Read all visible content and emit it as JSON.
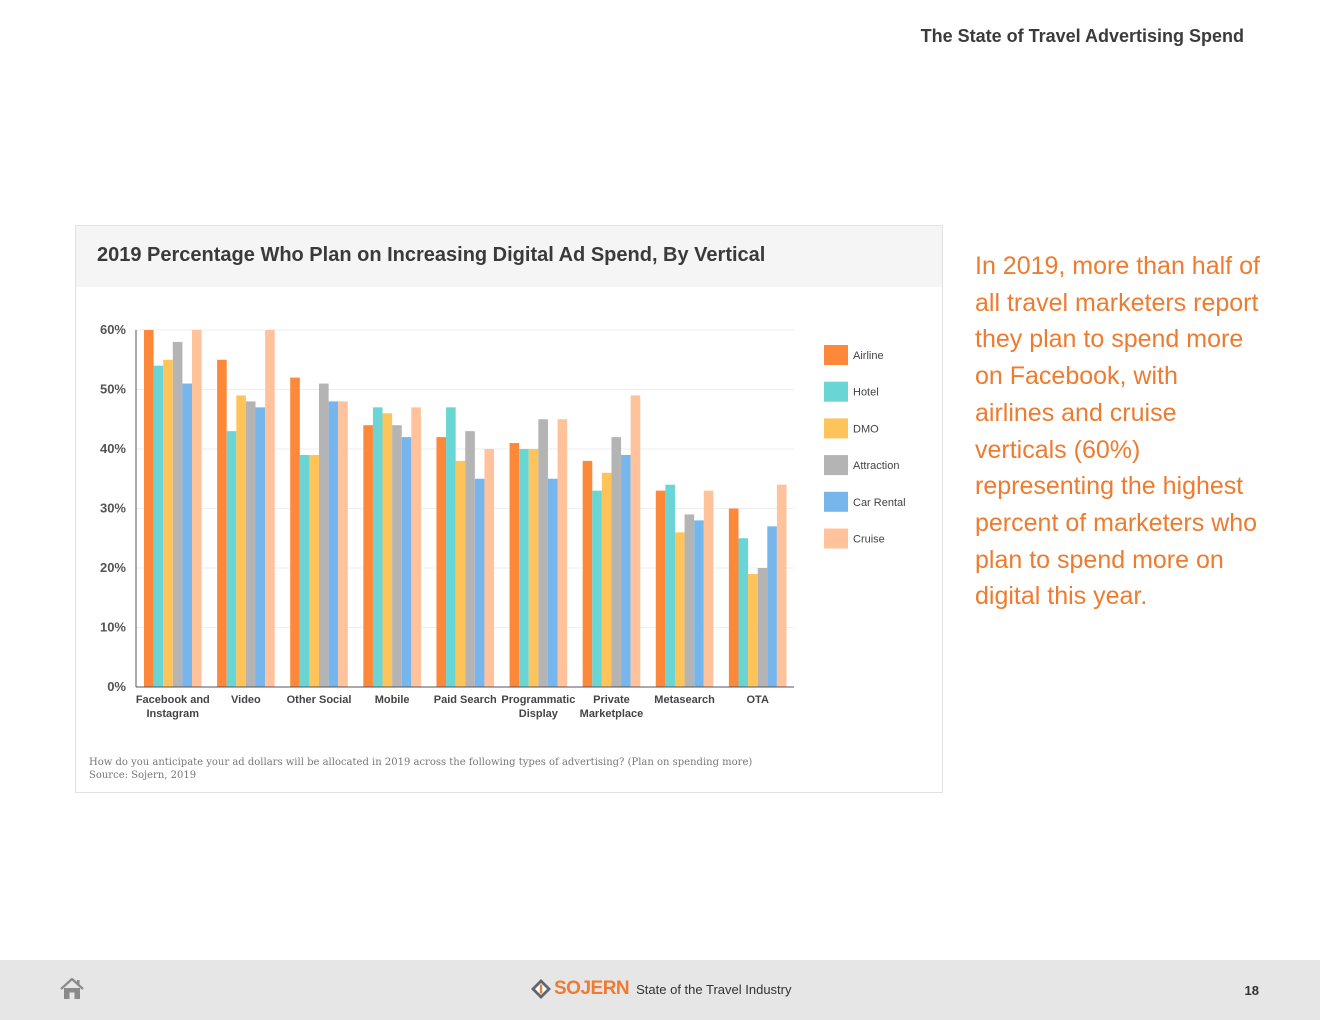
{
  "header": {
    "title": "The State of Travel Advertising Spend"
  },
  "callout": {
    "text": "In 2019, more than half of all travel marketers report they plan to spend more on Facebook, with airlines and cruise verticals (60%) representing the highest percent of marketers who plan to spend more on digital this year."
  },
  "footnote": {
    "question": "How do you anticipate your ad dollars will be allocated in 2019 across the following types of advertising? (Plan on spending more)",
    "source": "Source: Sojern, 2019"
  },
  "footer": {
    "brand_name": "SOJERN",
    "brand_tagline": "State of the Travel Industry",
    "page_number": "18"
  },
  "colors": {
    "accent": "#ee7b2f",
    "Airline": "#fd8839",
    "Hotel": "#69d5d5",
    "DMO": "#fec459",
    "Attraction": "#b4b4b4",
    "Car Rental": "#76b6ec",
    "Cruise": "#ffc29b"
  },
  "chart_data": {
    "type": "bar",
    "title": "2019 Percentage Who Plan on Increasing Digital Ad Spend, By Vertical",
    "xlabel": "",
    "ylabel": "",
    "ylim": [
      0,
      60
    ],
    "yticks": [
      "0%",
      "10%",
      "20%",
      "30%",
      "40%",
      "50%",
      "60%"
    ],
    "legend_position": "right",
    "categories": [
      [
        "Facebook and",
        "Instagram"
      ],
      [
        "Video"
      ],
      [
        "Other Social"
      ],
      [
        "Mobile"
      ],
      [
        "Paid Search"
      ],
      [
        "Programmatic",
        "Display"
      ],
      [
        "Private",
        "Marketplace"
      ],
      [
        "Metasearch"
      ],
      [
        "OTA"
      ]
    ],
    "series": [
      {
        "name": "Airline",
        "values": [
          60,
          55,
          52,
          44,
          42,
          41,
          38,
          33,
          30
        ]
      },
      {
        "name": "Hotel",
        "values": [
          54,
          43,
          39,
          47,
          47,
          40,
          33,
          34,
          25
        ]
      },
      {
        "name": "DMO",
        "values": [
          55,
          49,
          39,
          46,
          38,
          40,
          36,
          26,
          19
        ]
      },
      {
        "name": "Attraction",
        "values": [
          58,
          48,
          51,
          44,
          43,
          45,
          42,
          29,
          20
        ]
      },
      {
        "name": "Car Rental",
        "values": [
          51,
          47,
          48,
          42,
          35,
          35,
          39,
          28,
          27
        ]
      },
      {
        "name": "Cruise",
        "values": [
          60,
          60,
          48,
          47,
          40,
          45,
          49,
          33,
          34
        ]
      }
    ]
  }
}
